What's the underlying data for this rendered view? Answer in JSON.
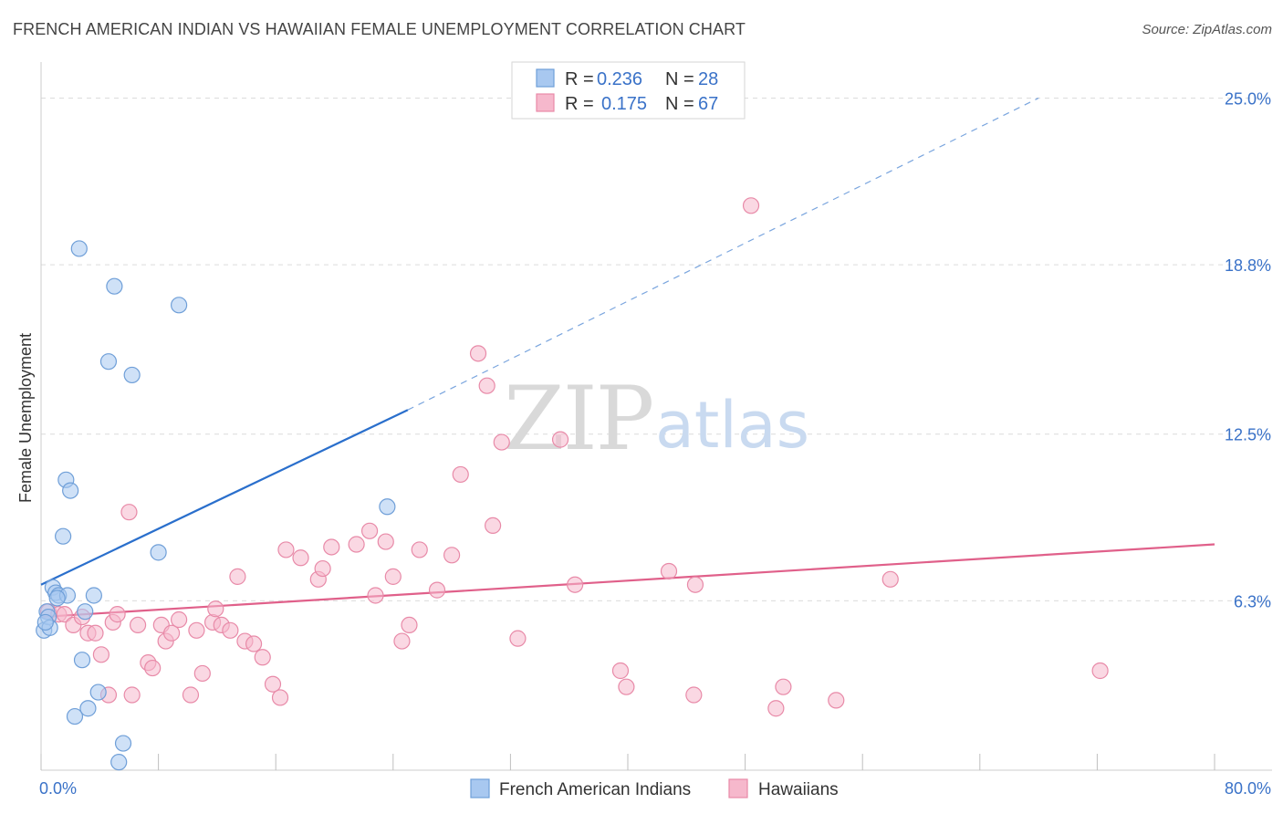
{
  "header": {
    "title": "FRENCH AMERICAN INDIAN VS HAWAIIAN FEMALE UNEMPLOYMENT CORRELATION CHART",
    "source": "Source: ZipAtlas.com"
  },
  "legend": {
    "rows": [
      {
        "r_label": "R =",
        "r_value": "0.236",
        "n_label": "N =",
        "n_value": "28",
        "color": "#a8c8f0"
      },
      {
        "r_label": "R =",
        "r_value": "0.175",
        "n_label": "N =",
        "n_value": "67",
        "color": "#f6b8cc"
      }
    ]
  },
  "bottom_legend": [
    {
      "label": "French American Indians",
      "color": "#a8c8f0"
    },
    {
      "label": "Hawaiians",
      "color": "#f6b8cc"
    }
  ],
  "watermark": {
    "zip": "ZIP",
    "atlas": "atlas"
  },
  "colors": {
    "blue_fill": "#a8c8f0",
    "blue_stroke": "#6f9fd8",
    "blue_line": "#2a6fcc",
    "pink_fill": "#f6b8cc",
    "pink_stroke": "#e88aa8",
    "pink_line": "#e0608a",
    "grid": "#dcdcdc",
    "tick_text": "#3a72c8"
  },
  "chart_data": {
    "type": "scatter",
    "title": "FRENCH AMERICAN INDIAN VS HAWAIIAN FEMALE UNEMPLOYMENT CORRELATION CHART",
    "xlabel": "",
    "ylabel": "Female Unemployment",
    "xlim": [
      0,
      80
    ],
    "ylim": [
      0,
      26
    ],
    "y_ticks": [
      6.3,
      12.5,
      18.8,
      25.0
    ],
    "y_tick_labels": [
      "6.3%",
      "12.5%",
      "18.8%",
      "25.0%"
    ],
    "x_tick_labels": [
      "0.0%",
      "80.0%"
    ],
    "grid": true,
    "legend_position": "top-center",
    "series": [
      {
        "name": "French American Indians",
        "R": 0.236,
        "N": 28,
        "trend": {
          "x": [
            0,
            25
          ],
          "y": [
            6.9,
            13.4
          ],
          "dashed_extension_to": [
            68,
            25.0
          ]
        },
        "points": [
          [
            0.2,
            5.2
          ],
          [
            0.4,
            5.9
          ],
          [
            0.5,
            5.7
          ],
          [
            0.6,
            5.3
          ],
          [
            0.8,
            6.8
          ],
          [
            1.0,
            6.6
          ],
          [
            1.2,
            6.5
          ],
          [
            1.5,
            8.7
          ],
          [
            1.7,
            10.8
          ],
          [
            1.8,
            6.5
          ],
          [
            2.0,
            10.4
          ],
          [
            2.3,
            2.0
          ],
          [
            2.6,
            19.4
          ],
          [
            2.8,
            4.1
          ],
          [
            3.0,
            5.9
          ],
          [
            3.2,
            2.3
          ],
          [
            3.6,
            6.5
          ],
          [
            3.9,
            2.9
          ],
          [
            4.6,
            15.2
          ],
          [
            5.0,
            18.0
          ],
          [
            5.3,
            0.3
          ],
          [
            5.6,
            1.0
          ],
          [
            6.2,
            14.7
          ],
          [
            8.0,
            8.1
          ],
          [
            9.4,
            17.3
          ],
          [
            23.6,
            9.8
          ],
          [
            0.3,
            5.5
          ],
          [
            1.1,
            6.4
          ]
        ]
      },
      {
        "name": "Hawaiians",
        "R": 0.175,
        "N": 67,
        "trend": {
          "x": [
            0,
            80
          ],
          "y": [
            5.7,
            8.4
          ]
        },
        "points": [
          [
            0.5,
            5.9
          ],
          [
            1.2,
            5.8
          ],
          [
            1.6,
            5.8
          ],
          [
            2.2,
            5.4
          ],
          [
            2.8,
            5.7
          ],
          [
            3.2,
            5.1
          ],
          [
            3.7,
            5.1
          ],
          [
            4.1,
            4.3
          ],
          [
            4.6,
            2.8
          ],
          [
            4.9,
            5.5
          ],
          [
            5.2,
            5.8
          ],
          [
            6.2,
            2.8
          ],
          [
            6.0,
            9.6
          ],
          [
            6.6,
            5.4
          ],
          [
            7.3,
            4.0
          ],
          [
            7.6,
            3.8
          ],
          [
            8.2,
            5.4
          ],
          [
            8.5,
            4.8
          ],
          [
            8.9,
            5.1
          ],
          [
            9.4,
            5.6
          ],
          [
            10.2,
            2.8
          ],
          [
            10.6,
            5.2
          ],
          [
            11.0,
            3.6
          ],
          [
            11.7,
            5.5
          ],
          [
            11.9,
            6.0
          ],
          [
            12.3,
            5.4
          ],
          [
            12.9,
            5.2
          ],
          [
            13.4,
            7.2
          ],
          [
            13.9,
            4.8
          ],
          [
            14.5,
            4.7
          ],
          [
            15.1,
            4.2
          ],
          [
            15.8,
            3.2
          ],
          [
            16.3,
            2.7
          ],
          [
            16.7,
            8.2
          ],
          [
            17.7,
            7.9
          ],
          [
            18.9,
            7.1
          ],
          [
            19.2,
            7.5
          ],
          [
            19.8,
            8.3
          ],
          [
            21.5,
            8.4
          ],
          [
            22.4,
            8.9
          ],
          [
            22.8,
            6.5
          ],
          [
            23.5,
            8.5
          ],
          [
            24.0,
            7.2
          ],
          [
            24.6,
            4.8
          ],
          [
            25.1,
            5.4
          ],
          [
            25.8,
            8.2
          ],
          [
            27.0,
            6.7
          ],
          [
            28.0,
            8.0
          ],
          [
            28.6,
            11.0
          ],
          [
            29.8,
            15.5
          ],
          [
            30.4,
            14.3
          ],
          [
            30.8,
            9.1
          ],
          [
            31.4,
            12.2
          ],
          [
            32.5,
            4.9
          ],
          [
            35.4,
            12.3
          ],
          [
            36.4,
            6.9
          ],
          [
            39.5,
            3.7
          ],
          [
            39.9,
            3.1
          ],
          [
            42.8,
            7.4
          ],
          [
            44.5,
            2.8
          ],
          [
            44.6,
            6.9
          ],
          [
            48.4,
            21.0
          ],
          [
            50.1,
            2.3
          ],
          [
            50.6,
            3.1
          ],
          [
            54.2,
            2.6
          ],
          [
            57.9,
            7.1
          ],
          [
            72.2,
            3.7
          ]
        ]
      }
    ]
  }
}
